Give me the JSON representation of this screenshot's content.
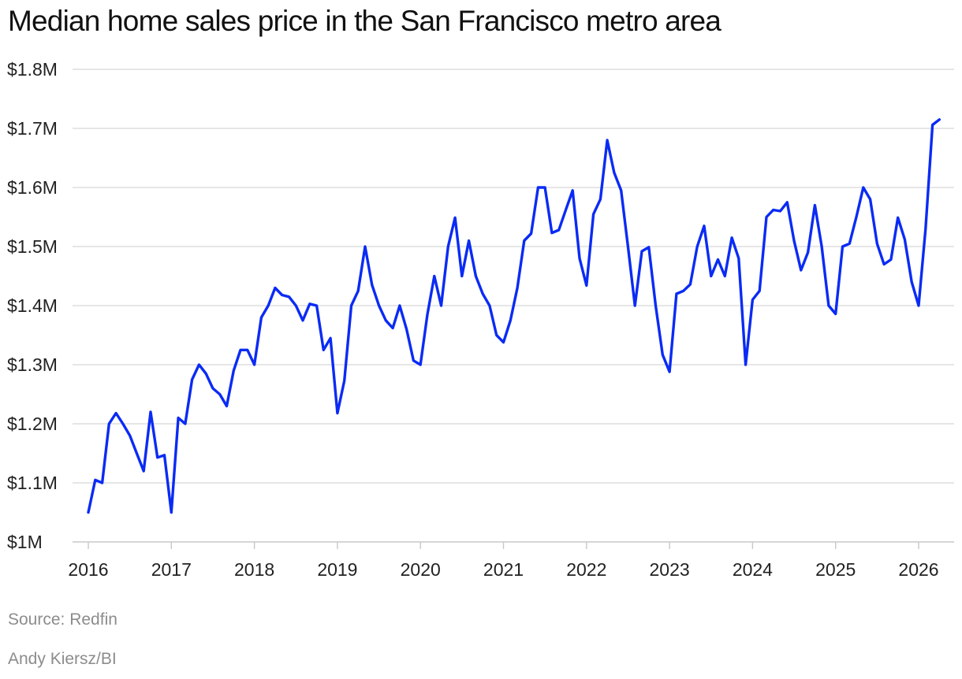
{
  "chart_data": {
    "type": "line",
    "title": "Median home sales price in the San Francisco metro area",
    "xlabel": "",
    "ylabel": "",
    "x_unit": "monthly, 2016-01 to 2026-03",
    "x_ticks": [
      "2016",
      "2017",
      "2018",
      "2019",
      "2020",
      "2021",
      "2022",
      "2023",
      "2024",
      "2025",
      "2026"
    ],
    "xlim": [
      2016,
      2026.45
    ],
    "y_ticks": [
      1000000,
      1100000,
      1200000,
      1300000,
      1400000,
      1500000,
      1600000,
      1700000,
      1800000
    ],
    "y_tick_labels": [
      "$1M",
      "$1.1M",
      "$1.2M",
      "$1.3M",
      "$1.4M",
      "$1.5M",
      "$1.6M",
      "$1.7M",
      "$1.8M"
    ],
    "ylim": [
      1000000,
      1800000
    ],
    "grid": true,
    "color": "#0a2bf5",
    "series": [
      {
        "name": "",
        "start": "2016-01",
        "values": [
          1050000,
          1105000,
          1100000,
          1200000,
          1218000,
          1200000,
          1180000,
          1150000,
          1120000,
          1220000,
          1143000,
          1147000,
          1050000,
          1210000,
          1200000,
          1275000,
          1300000,
          1285000,
          1260000,
          1250000,
          1230000,
          1290000,
          1325000,
          1325000,
          1300000,
          1380000,
          1400000,
          1430000,
          1418000,
          1415000,
          1400000,
          1375000,
          1403000,
          1400000,
          1325000,
          1345000,
          1218000,
          1273000,
          1400000,
          1425000,
          1500000,
          1435000,
          1400000,
          1375000,
          1362000,
          1400000,
          1360000,
          1307000,
          1300000,
          1385000,
          1450000,
          1400000,
          1500000,
          1549000,
          1450000,
          1510000,
          1450000,
          1420000,
          1400000,
          1350000,
          1338000,
          1375000,
          1430000,
          1510000,
          1522000,
          1600000,
          1600000,
          1523000,
          1528000,
          1562000,
          1595000,
          1480000,
          1434000,
          1555000,
          1580000,
          1680000,
          1625000,
          1595000,
          1500000,
          1400000,
          1492000,
          1499000,
          1400000,
          1317000,
          1288000,
          1420000,
          1425000,
          1436000,
          1500000,
          1535000,
          1450000,
          1478000,
          1450000,
          1515000,
          1480000,
          1300000,
          1410000,
          1425000,
          1550000,
          1562000,
          1560000,
          1575000,
          1510000,
          1460000,
          1490000,
          1570000,
          1500000,
          1400000,
          1386000,
          1500000,
          1505000,
          1550000,
          1600000,
          1580000,
          1505000,
          1470000,
          1478000,
          1549000,
          1512000,
          1440000,
          1400000,
          1530000,
          1706000,
          1715000
        ]
      }
    ]
  },
  "footer": {
    "source": "Source: Redfin",
    "credit": "Andy Kiersz/BI"
  }
}
